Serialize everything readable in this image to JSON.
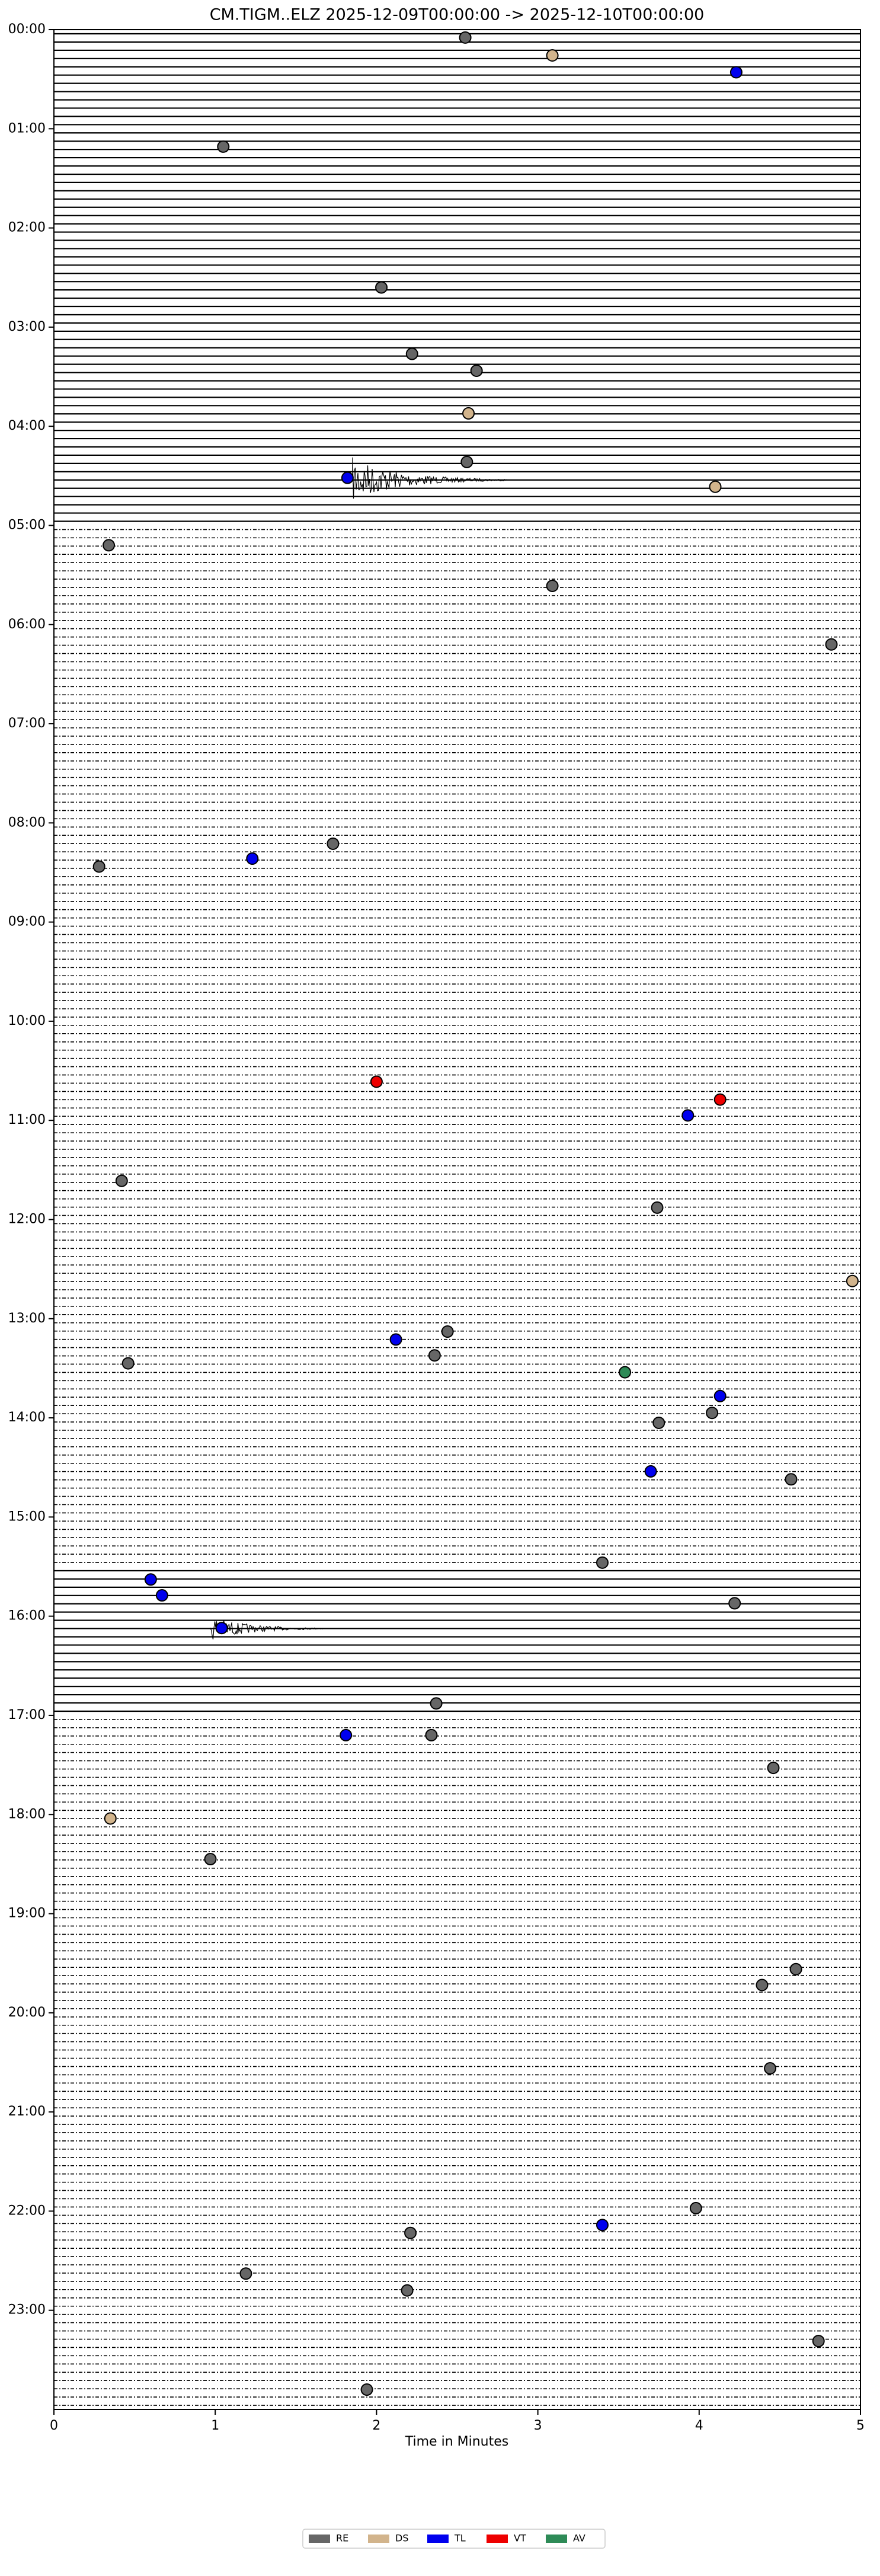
{
  "chart_data": {
    "type": "helicorder",
    "title": "CM.TIGM..ELZ  2025-12-09T00:00:00 -> 2025-12-10T00:00:00",
    "x_label": "Time in Minutes",
    "xlim": [
      0,
      5
    ],
    "xticks": [
      0,
      1,
      2,
      3,
      4,
      5
    ],
    "ylim": [
      0,
      24
    ],
    "yticks": [
      {
        "value": 0,
        "label": "00:00"
      },
      {
        "value": 1,
        "label": "01:00"
      },
      {
        "value": 2,
        "label": "02:00"
      },
      {
        "value": 3,
        "label": "03:00"
      },
      {
        "value": 4,
        "label": "04:00"
      },
      {
        "value": 5,
        "label": "05:00"
      },
      {
        "value": 6,
        "label": "06:00"
      },
      {
        "value": 7,
        "label": "07:00"
      },
      {
        "value": 8,
        "label": "08:00"
      },
      {
        "value": 9,
        "label": "09:00"
      },
      {
        "value": 10,
        "label": "10:00"
      },
      {
        "value": 11,
        "label": "11:00"
      },
      {
        "value": 12,
        "label": "12:00"
      },
      {
        "value": 13,
        "label": "13:00"
      },
      {
        "value": 14,
        "label": "14:00"
      },
      {
        "value": 15,
        "label": "15:00"
      },
      {
        "value": 16,
        "label": "16:00"
      },
      {
        "value": 17,
        "label": "17:00"
      },
      {
        "value": 18,
        "label": "18:00"
      },
      {
        "value": 19,
        "label": "19:00"
      },
      {
        "value": 20,
        "label": "20:00"
      },
      {
        "value": 21,
        "label": "21:00"
      },
      {
        "value": 22,
        "label": "22:00"
      },
      {
        "value": 23,
        "label": "23:00"
      }
    ],
    "legend": "bottom",
    "series": [
      {
        "name": "RE",
        "color": "#666666",
        "x": [
          2.55,
          1.05,
          2.03,
          2.22,
          2.62,
          2.56,
          0.34,
          3.09,
          4.82,
          1.73,
          0.28,
          0.42,
          3.74,
          2.44,
          2.36,
          0.46,
          4.08,
          3.75,
          4.57,
          3.4,
          4.22,
          2.37,
          2.34,
          4.46,
          0.97,
          4.6,
          4.39,
          4.44,
          3.98,
          2.21,
          1.19,
          2.19,
          4.74,
          1.94
        ],
        "values": [
          0.08,
          1.18,
          2.6,
          3.27,
          3.44,
          4.36,
          5.2,
          5.61,
          6.2,
          8.21,
          8.44,
          11.61,
          11.88,
          13.13,
          13.37,
          13.45,
          13.95,
          14.05,
          14.62,
          15.46,
          15.87,
          16.88,
          17.2,
          17.53,
          18.45,
          19.56,
          19.72,
          20.56,
          21.97,
          22.22,
          22.63,
          22.8,
          23.31,
          23.8
        ]
      },
      {
        "name": "DS",
        "color": "#d2b48c",
        "x": [
          3.09,
          2.57,
          4.1,
          4.95,
          0.35
        ],
        "values": [
          0.26,
          3.87,
          4.61,
          12.62,
          18.04
        ]
      },
      {
        "name": "TL",
        "color": "#0000ee",
        "x": [
          4.23,
          1.82,
          1.23,
          3.93,
          2.12,
          4.13,
          3.7,
          0.6,
          0.67,
          1.04,
          1.81,
          3.4
        ],
        "values": [
          0.43,
          4.52,
          8.36,
          10.95,
          13.21,
          13.78,
          14.54,
          15.63,
          15.79,
          16.12,
          17.2,
          22.14
        ]
      },
      {
        "name": "VT",
        "color": "#ee0000",
        "x": [
          2.0,
          4.13
        ],
        "values": [
          10.61,
          10.79
        ]
      },
      {
        "name": "AV",
        "color": "#2e8b57",
        "x": [
          3.54
        ],
        "values": [
          13.54
        ]
      }
    ]
  }
}
